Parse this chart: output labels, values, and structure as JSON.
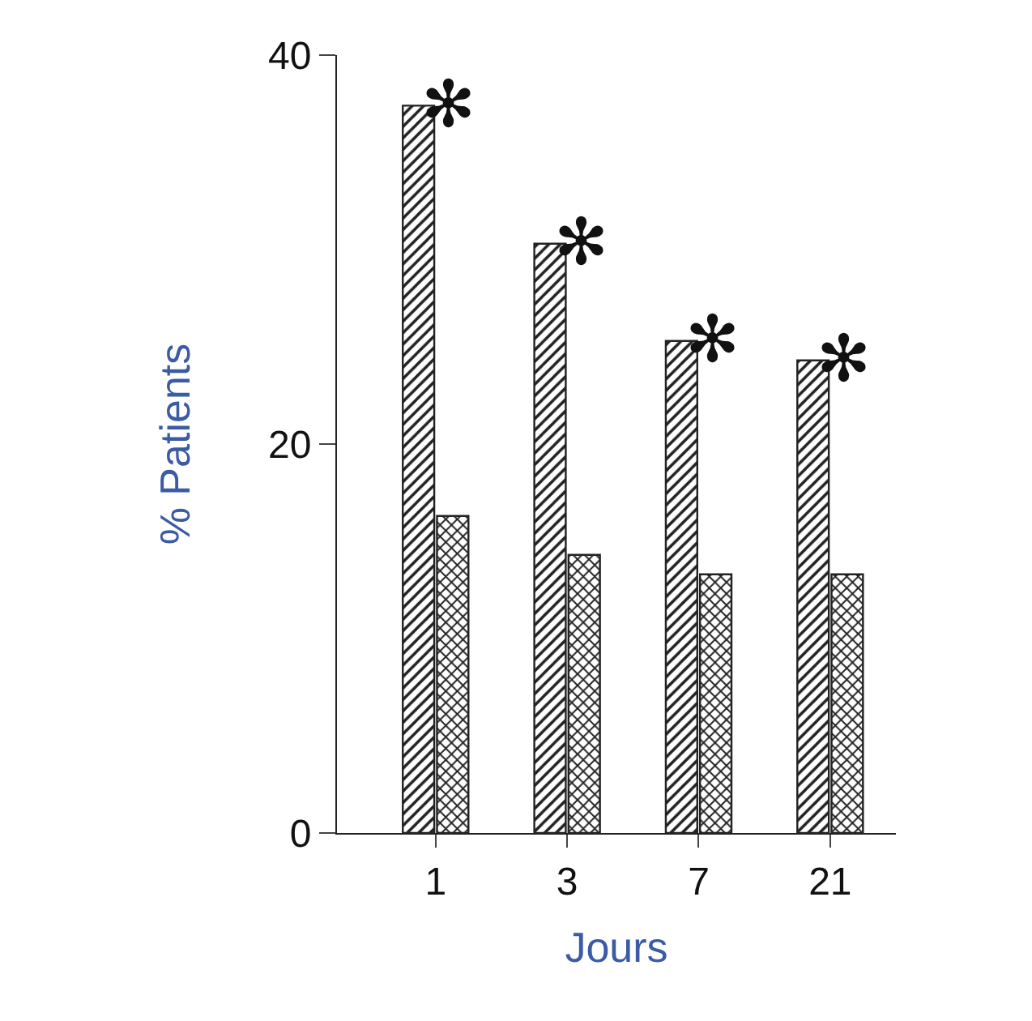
{
  "chart_data": {
    "type": "bar",
    "xlabel": "Jours",
    "ylabel": "% Patients",
    "categories": [
      "1",
      "3",
      "7",
      "21"
    ],
    "series": [
      {
        "color": "#222222",
        "values": [
          37.4,
          30.3,
          25.3,
          24.3
        ]
      },
      {
        "color": "#222222",
        "values": [
          16.3,
          14.3,
          13.3,
          13.3
        ]
      }
    ],
    "ylim": [
      0,
      40
    ],
    "yticks": [
      0,
      20,
      40
    ],
    "grid": false,
    "annotations": [
      {
        "text": "✻",
        "x": "1",
        "y": 37.4
      },
      {
        "text": "✻",
        "x": "3",
        "y": 30.3
      },
      {
        "text": "✻",
        "x": "7",
        "y": 25.3
      },
      {
        "text": "✻",
        "x": "21",
        "y": 24.3
      }
    ]
  }
}
